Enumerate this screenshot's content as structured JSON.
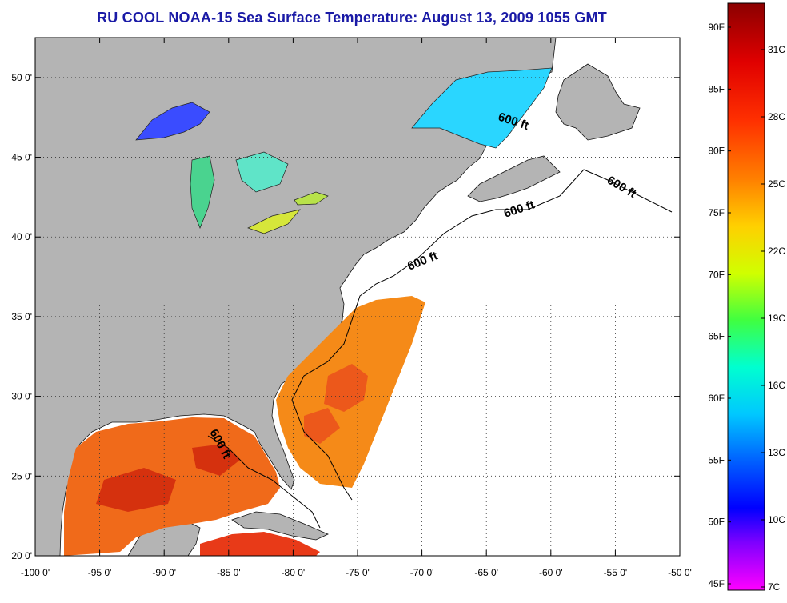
{
  "title": "RU COOL  NOAA-15  Sea Surface Temperature:  August 13, 2009 1055 GMT",
  "axes": {
    "x_ticks": [
      {
        "lon": -100,
        "label": "-100 0'"
      },
      {
        "lon": -95,
        "label": "-95 0'"
      },
      {
        "lon": -90,
        "label": "-90 0'"
      },
      {
        "lon": -85,
        "label": "-85 0'"
      },
      {
        "lon": -80,
        "label": "-80 0'"
      },
      {
        "lon": -75,
        "label": "-75 0'"
      },
      {
        "lon": -70,
        "label": "-70 0'"
      },
      {
        "lon": -65,
        "label": "-65 0'"
      },
      {
        "lon": -60,
        "label": "-60 0'"
      },
      {
        "lon": -55,
        "label": "-55 0'"
      },
      {
        "lon": -50,
        "label": "-50 0'"
      }
    ],
    "y_ticks": [
      {
        "lat": 50,
        "label": "50 0'"
      },
      {
        "lat": 45,
        "label": "45 0'"
      },
      {
        "lat": 40,
        "label": "40 0'"
      },
      {
        "lat": 35,
        "label": "35 0'"
      },
      {
        "lat": 30,
        "label": "30 0'"
      },
      {
        "lat": 25,
        "label": "25 0'"
      },
      {
        "lat": 20,
        "label": "20 0'"
      }
    ],
    "lon_range": [
      -100,
      -50
    ],
    "lat_range": [
      20,
      52.5
    ]
  },
  "contour_labels": [
    "600 ft",
    "600 ft",
    "600 ft",
    "600 ft",
    "600 ft"
  ],
  "colorbar": {
    "fahrenheit": [
      "90F",
      "85F",
      "80F",
      "75F",
      "70F",
      "65F",
      "60F",
      "55F",
      "50F",
      "45F"
    ],
    "celsius": [
      "31C",
      "28C",
      "25C",
      "22C",
      "19C",
      "16C",
      "13C",
      "10C",
      "7C"
    ],
    "colors": [
      "#8b0000",
      "#e00000",
      "#ff3000",
      "#ff8000",
      "#ffd000",
      "#d0ff00",
      "#40ff40",
      "#00ffd0",
      "#00c8ff",
      "#0060ff",
      "#0000ff",
      "#8000ff",
      "#ff00ff"
    ]
  },
  "colors": {
    "land": "#b4b4b4",
    "ocean_nodata": "#ffffff",
    "title": "#1a1aa6"
  }
}
